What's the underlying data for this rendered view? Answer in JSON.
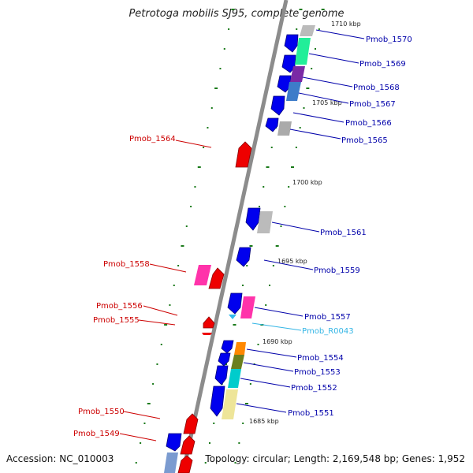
{
  "title": "Petrotoga mobilis SJ95, complete genome",
  "footer": {
    "accession": "Accession: NC_010003",
    "stats": "Topology: circular; Length: 2,169,548 bp; Genes: 1,952"
  },
  "colors": {
    "backbone": "#8c8c8c",
    "tick": "#1a7a1a",
    "right_label": "#0000aa",
    "left_label": "#cc0000",
    "rna_label": "#33b5e5"
  },
  "scale_labels": [
    "1710 kbp",
    "1705 kbp",
    "1700 kbp",
    "1695 kbp",
    "1690 kbp",
    "1685 kbp"
  ],
  "right_labels": [
    "Pmob_1570",
    "Pmob_1569",
    "Pmob_1568",
    "Pmob_1567",
    "Pmob_1566",
    "Pmob_1565",
    "Pmob_1561",
    "Pmob_1559",
    "Pmob_1557",
    "Pmob_R0043",
    "Pmob_1554",
    "Pmob_1553",
    "Pmob_1552",
    "Pmob_1551"
  ],
  "left_labels": [
    "Pmob_1564",
    "Pmob_1558",
    "Pmob_1556",
    "Pmob_1555",
    "Pmob_1550",
    "Pmob_1549"
  ]
}
